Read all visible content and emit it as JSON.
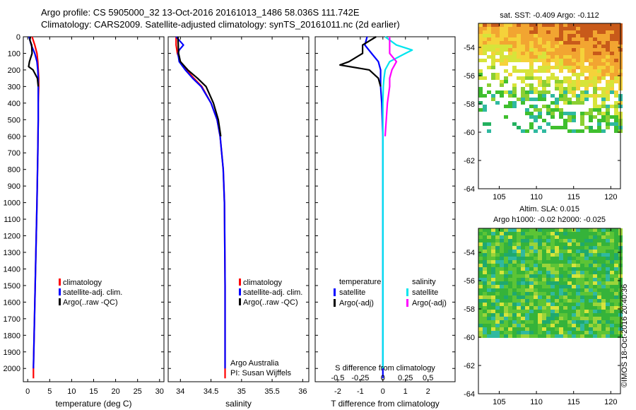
{
  "header": {
    "line1": "Argo profile: CS 5905000_32 13-Oct-2016 20161013_1486 58.036S 111.742E",
    "line2": "Climatology: CARS2009. Satellite-adjusted climatology: synTS_20161011.nc (2d earlier)"
  },
  "colors": {
    "climatology": "#ff0000",
    "satellite": "#0000ff",
    "argo": "#000000",
    "satellite_salinity": "#00e5ee",
    "argo_adj_salinity": "#ff00ff"
  },
  "credit": "©IMOS 18-Oct-2016 20:40:36",
  "chart_data": [
    {
      "type": "line",
      "panel": "temperature",
      "xlabel": "temperature (deg C)",
      "xlim": [
        -1,
        31
      ],
      "xticks": [
        "0",
        "5",
        "10",
        "15",
        "20",
        "25",
        "30"
      ],
      "xtick_values": [
        0,
        5,
        10,
        15,
        20,
        25,
        30
      ],
      "ylim": [
        2080,
        0
      ],
      "yticks": [
        "0",
        "100",
        "200",
        "300",
        "400",
        "500",
        "600",
        "700",
        "800",
        "900",
        "1000",
        "1100",
        "1200",
        "1300",
        "1400",
        "1500",
        "1600",
        "1700",
        "1800",
        "1900",
        "2000"
      ],
      "legend": [
        "climatology",
        "satellite-adj. clim.",
        "Argo(..raw -QC)"
      ],
      "series": [
        {
          "name": "climatology",
          "color": "#ff0000",
          "depth": [
            0,
            50,
            100,
            150,
            200,
            250,
            300,
            400,
            500,
            700,
            1000,
            1500,
            2000,
            2060
          ],
          "values": [
            1.0,
            1.6,
            2.1,
            2.3,
            2.4,
            2.5,
            2.5,
            2.4,
            2.4,
            2.3,
            2.1,
            1.7,
            1.3,
            1.3
          ]
        },
        {
          "name": "satellite-adj. clim.",
          "color": "#0000ff",
          "depth": [
            0,
            50,
            100,
            150,
            200,
            250,
            300,
            400,
            500,
            700,
            1000,
            1500,
            2000
          ],
          "values": [
            0.3,
            0.8,
            1.6,
            2.1,
            2.3,
            2.4,
            2.4,
            2.4,
            2.4,
            2.3,
            2.1,
            1.7,
            1.3
          ]
        },
        {
          "name": "Argo(..raw -QC)",
          "color": "#000000",
          "depth": [
            0,
            20,
            50,
            100,
            150,
            180,
            200,
            250,
            300
          ],
          "values": [
            0.6,
            0.5,
            0.9,
            1.0,
            0.4,
            0.2,
            1.2,
            2.2,
            2.4
          ]
        }
      ]
    },
    {
      "type": "line",
      "panel": "salinity",
      "xlabel": "salinity",
      "xlim": [
        33.8,
        36.1
      ],
      "xticks": [
        "34",
        "34.5",
        "35",
        "35.5",
        "36"
      ],
      "xtick_values": [
        34,
        34.5,
        35,
        35.5,
        36
      ],
      "ylim": [
        2080,
        0
      ],
      "legend": [
        "climatology",
        "satellite-adj. clim.",
        "Argo(..raw -QC)"
      ],
      "annotation": [
        "Argo Australia",
        "PI: Susan Wijffels"
      ],
      "series": [
        {
          "name": "climatology",
          "color": "#ff0000",
          "depth": [
            0,
            50,
            100,
            150,
            200,
            250,
            300,
            400,
            500,
            600,
            800,
            1000,
            1500,
            2000,
            2060
          ],
          "values": [
            33.93,
            33.93,
            33.95,
            34.0,
            34.1,
            34.22,
            34.35,
            34.5,
            34.6,
            34.65,
            34.7,
            34.72,
            34.73,
            34.73,
            34.73
          ]
        },
        {
          "name": "satellite-adj. clim.",
          "color": "#0000ff",
          "depth": [
            0,
            50,
            80,
            100,
            150,
            200,
            250,
            300,
            400,
            500,
            600,
            800,
            1000,
            1500,
            2000
          ],
          "values": [
            33.93,
            34.05,
            33.98,
            33.96,
            33.98,
            34.08,
            34.2,
            34.34,
            34.5,
            34.6,
            34.65,
            34.7,
            34.72,
            34.73,
            34.73
          ]
        },
        {
          "name": "Argo(..raw -QC)",
          "color": "#000000",
          "depth": [
            0,
            100,
            150,
            200,
            250,
            300,
            400,
            500,
            600
          ],
          "values": [
            33.96,
            33.97,
            34.0,
            34.12,
            34.28,
            34.42,
            34.54,
            34.62,
            34.66
          ]
        }
      ]
    },
    {
      "type": "line",
      "panel": "difference",
      "xlabel": "T difference from climatology",
      "xlabel_top": "S difference from climatology",
      "xlim": [
        -3,
        3.2
      ],
      "xticks": [
        "-2",
        "-1",
        "0",
        "1",
        "2"
      ],
      "xtick_values": [
        -2,
        -1,
        0,
        1,
        2
      ],
      "sticks": [
        "-0.5",
        "-0.25",
        "0",
        "0.25",
        "0.5"
      ],
      "stick_values": [
        -2,
        -1,
        0,
        1,
        2
      ],
      "ylim": [
        2080,
        0
      ],
      "legend": {
        "temperature_header": "temperature",
        "salinity_header": "salinity",
        "entries": [
          "satellite",
          "Argo(-adj)",
          "satellite",
          "Argo(-adj)"
        ]
      },
      "series": [
        {
          "name": "temperature satellite",
          "color": "#0000ff",
          "depth": [
            0,
            50,
            100,
            150,
            200,
            250,
            300,
            400,
            600,
            1000,
            1500,
            2060
          ],
          "values": [
            -0.7,
            -0.8,
            -0.5,
            -0.2,
            -0.1,
            -0.1,
            -0.1,
            -0.05,
            0,
            0,
            0,
            0
          ]
        },
        {
          "name": "temperature Argo(-adj)",
          "color": "#000000",
          "depth": [
            0,
            50,
            100,
            150,
            170,
            200,
            250,
            300
          ],
          "values": [
            -0.3,
            -0.9,
            -0.9,
            -1.5,
            -1.9,
            -0.6,
            -0.2,
            -0.1
          ]
        },
        {
          "name": "salinity satellite",
          "color": "#00e5ee",
          "depth": [
            0,
            50,
            80,
            100,
            150,
            200,
            250,
            300,
            400,
            600,
            1000,
            1500,
            2000
          ],
          "values": [
            0.1,
            0.6,
            1.3,
            1.0,
            0.3,
            0.1,
            0.05,
            0.02,
            0,
            0,
            0,
            0,
            0
          ]
        },
        {
          "name": "salinity Argo(-adj)",
          "color": "#ff00ff",
          "depth": [
            0,
            100,
            150,
            200,
            250,
            300,
            400,
            500,
            600
          ],
          "values": [
            0.3,
            0.3,
            0.6,
            0.4,
            0.3,
            0.3,
            0.2,
            0.15,
            0.1
          ]
        }
      ]
    },
    {
      "type": "heatmap",
      "panel": "sat-sst",
      "title": "sat. SST: -0.409 Argo: -0.112",
      "xticks": [
        "105",
        "110",
        "115",
        "120"
      ],
      "xtick_values": [
        105,
        110,
        115,
        120
      ],
      "yticks": [
        "-54",
        "-56",
        "-58",
        "-60",
        "-62",
        "-64"
      ],
      "ytick_values": [
        -54,
        -56,
        -58,
        -60,
        -62,
        -64
      ],
      "xlim": [
        102.2,
        121.3
      ],
      "ylim": [
        -64,
        -52.3
      ],
      "data_extent_lat": [
        -60,
        -52.3
      ]
    },
    {
      "type": "heatmap",
      "panel": "altim-sla",
      "title": "Altim. SLA: 0.015",
      "subtitle": "Argo h1000: -0.02 h2000: -0.025",
      "xticks": [
        "105",
        "110",
        "115",
        "120"
      ],
      "xtick_values": [
        105,
        110,
        115,
        120
      ],
      "yticks": [
        "-54",
        "-56",
        "-58",
        "-60",
        "-62",
        "-64"
      ],
      "ytick_values": [
        -54,
        -56,
        -58,
        -60,
        -62,
        -64
      ],
      "xlim": [
        102.2,
        121.3
      ],
      "ylim": [
        -64,
        -52.3
      ],
      "data_extent_lat": [
        -60,
        -52.3
      ]
    }
  ]
}
